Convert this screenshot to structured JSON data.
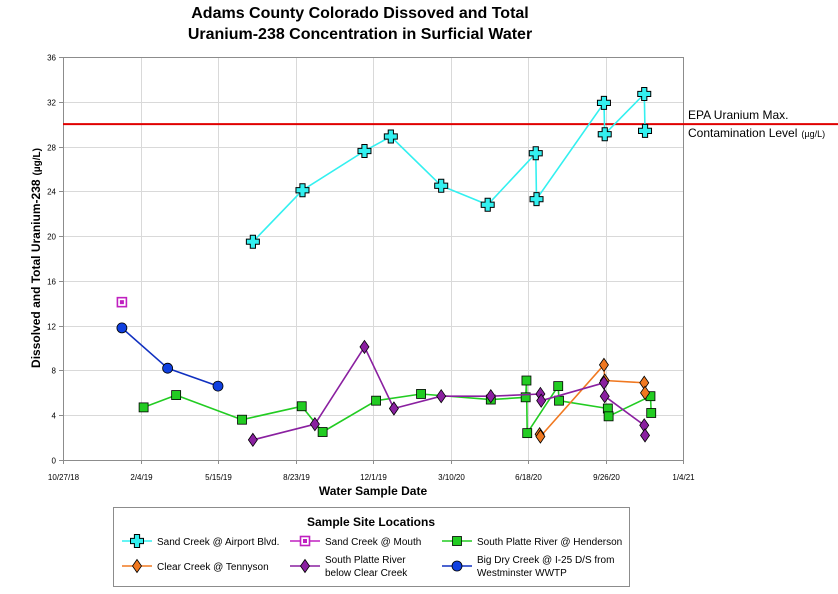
{
  "chart_data": {
    "type": "line",
    "title_line1": "Adams County Colorado Dissoved and Total",
    "title_line2": "Uranium-238 Concentration in Surficial Water",
    "xlabel": "Water Sample Date",
    "ylabel": "Dissolved and Total Uranium-238",
    "ylabel_unit": "(µg/L)",
    "x_ticks": [
      "10/27/18",
      "2/4/19",
      "5/15/19",
      "8/23/19",
      "12/1/19",
      "3/10/20",
      "6/18/20",
      "9/26/20",
      "1/4/21"
    ],
    "y_ticks": [
      0,
      4,
      8,
      12,
      16,
      20,
      24,
      28,
      32,
      36
    ],
    "ylim": [
      0,
      36
    ],
    "xlim": [
      "10/27/18",
      "1/4/21"
    ],
    "grid": true,
    "reference_line": {
      "value": 30,
      "label_line1": "EPA Uranium Max.",
      "label_line2": "Contamination Level",
      "unit": "(µg/L)",
      "color": "#e00000"
    },
    "legend_title": "Sample Site Locations",
    "series": [
      {
        "name": "Sand Creek @ Airport Blvd.",
        "color": "#33f0f0",
        "marker": "plus",
        "points": [
          [
            "2019-06-29",
            19.5
          ],
          [
            "2019-09-01",
            24.1
          ],
          [
            "2019-11-20",
            27.6
          ],
          [
            "2019-12-24",
            28.9
          ],
          [
            "2020-02-27",
            24.5
          ],
          [
            "2020-04-27",
            22.8
          ],
          [
            "2020-06-28",
            27.4
          ],
          [
            "2020-06-29",
            23.3
          ],
          [
            "2020-09-24",
            31.9
          ],
          [
            "2020-09-25",
            29.1
          ],
          [
            "2020-11-15",
            32.7
          ],
          [
            "2020-11-16",
            29.4
          ]
        ]
      },
      {
        "name": "Sand Creek @ Mouth",
        "color": "#c020c0",
        "marker": "square-open",
        "points": [
          [
            "2019-01-11",
            14.1
          ]
        ]
      },
      {
        "name": "South Platte River @ Henderson",
        "color": "#22cc22",
        "marker": "square",
        "points": [
          [
            "2019-02-08",
            4.7
          ],
          [
            "2019-03-22",
            5.8
          ],
          [
            "2019-06-15",
            3.6
          ],
          [
            "2019-08-31",
            4.8
          ],
          [
            "2019-09-27",
            2.5
          ],
          [
            "2019-12-05",
            5.3
          ],
          [
            "2020-02-01",
            5.9
          ],
          [
            "2020-05-01",
            5.4
          ],
          [
            "2020-06-15",
            5.6
          ],
          [
            "2020-06-16",
            7.1
          ],
          [
            "2020-06-17",
            2.4
          ],
          [
            "2020-07-27",
            6.6
          ],
          [
            "2020-07-28",
            5.3
          ],
          [
            "2020-09-29",
            4.6
          ],
          [
            "2020-09-30",
            3.9
          ],
          [
            "2020-11-23",
            5.7
          ],
          [
            "2020-11-24",
            4.2
          ]
        ]
      },
      {
        "name": "Clear Creek @ Tennyson",
        "color": "#f07820",
        "marker": "diamond",
        "points": [
          [
            "2020-07-03",
            2.3
          ],
          [
            "2020-07-04",
            2.1
          ],
          [
            "2020-09-24",
            8.5
          ],
          [
            "2020-09-25",
            7.1
          ],
          [
            "2020-11-15",
            6.9
          ],
          [
            "2020-11-16",
            6.0
          ]
        ]
      },
      {
        "name": "South Platte River below Clear Creek",
        "name_line1": "South Platte River",
        "name_line2": "below Clear Creek",
        "color": "#8a20a0",
        "marker": "diamond",
        "points": [
          [
            "2019-06-29",
            1.8
          ],
          [
            "2019-09-17",
            3.2
          ],
          [
            "2019-11-20",
            10.1
          ],
          [
            "2019-12-28",
            4.6
          ],
          [
            "2020-02-27",
            5.7
          ],
          [
            "2020-05-01",
            5.7
          ],
          [
            "2020-07-04",
            5.9
          ],
          [
            "2020-07-05",
            5.3
          ],
          [
            "2020-09-24",
            6.9
          ],
          [
            "2020-09-25",
            5.7
          ],
          [
            "2020-11-15",
            3.1
          ],
          [
            "2020-11-16",
            2.2
          ]
        ]
      },
      {
        "name": "Big Dry Creek @ I-25 D/S from Westminster WWTP",
        "name_line1": "Big Dry Creek @ I-25 D/S from",
        "name_line2": "Westminster WWTP",
        "color": "#1040e0",
        "line_color": "#1030c0",
        "marker": "circle",
        "points": [
          [
            "2019-01-11",
            11.8
          ],
          [
            "2019-03-11",
            8.2
          ],
          [
            "2019-05-15",
            6.6
          ]
        ]
      }
    ]
  }
}
